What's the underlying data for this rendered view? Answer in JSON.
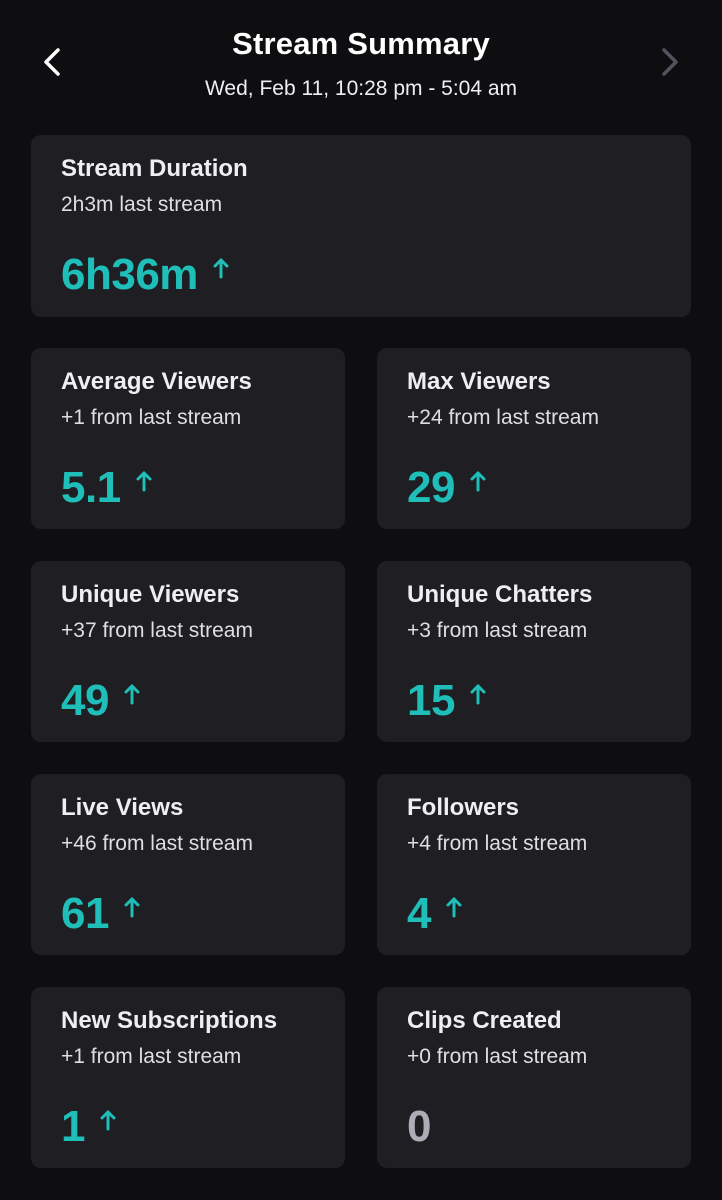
{
  "header": {
    "title": "Stream Summary",
    "subtitle": "Wed, Feb 11, 10:28 pm - 5:04 am"
  },
  "colors": {
    "accent": "#1fbeb9",
    "neutral": "#adadb8",
    "card_bg": "#1f1f23",
    "page_bg": "#0e0e10"
  },
  "icons": {
    "back": "chevron-left-icon",
    "next": "chevron-right-icon",
    "trend": "arrow-up-icon"
  },
  "duration": {
    "label": "Stream Duration",
    "delta": "2h3m last stream",
    "value": "6h36m"
  },
  "stats": [
    {
      "label": "Average Viewers",
      "delta": "+1 from last stream",
      "value": "5.1"
    },
    {
      "label": "Max Viewers",
      "delta": "+24 from last stream",
      "value": "29"
    },
    {
      "label": "Unique Viewers",
      "delta": "+37 from last stream",
      "value": "49"
    },
    {
      "label": "Unique Chatters",
      "delta": "+3 from last stream",
      "value": "15"
    },
    {
      "label": "Live Views",
      "delta": "+46 from last stream",
      "value": "61"
    },
    {
      "label": "Followers",
      "delta": "+4 from last stream",
      "value": "4"
    },
    {
      "label": "New Subscriptions",
      "delta": "+1 from last stream",
      "value": "1"
    },
    {
      "label": "Clips Created",
      "delta": "+0 from last stream",
      "value": "0"
    }
  ]
}
